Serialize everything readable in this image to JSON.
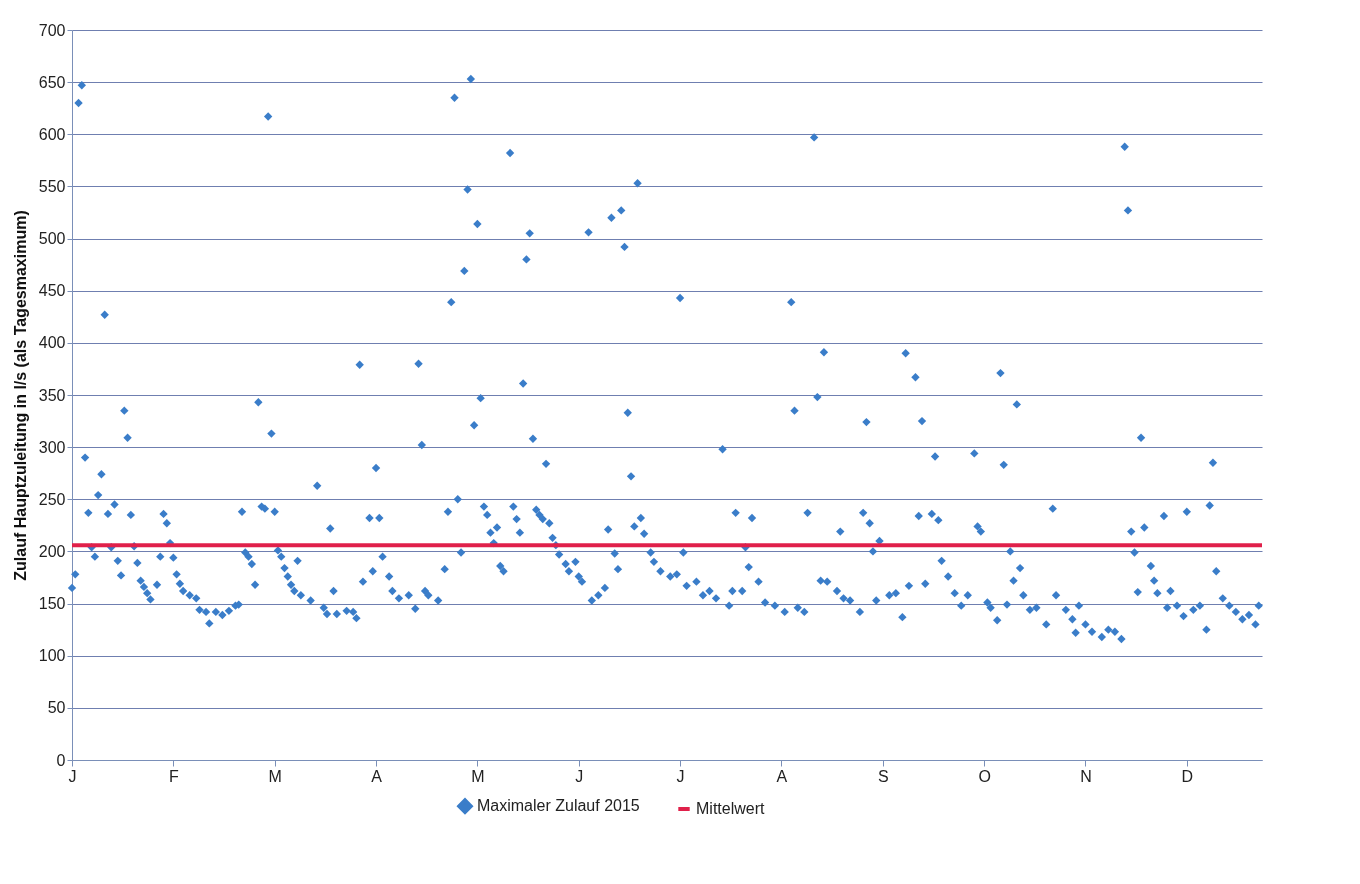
{
  "chart_data": {
    "type": "scatter",
    "ylabel": "Zulauf Hauptzuleitung in l/s (als Tagesmaximum)",
    "categories": [
      "J",
      null,
      null,
      null,
      null,
      null,
      null,
      null,
      null,
      null,
      null,
      null,
      null,
      null,
      null,
      null,
      null,
      null,
      null,
      null,
      null,
      null,
      null,
      null,
      null,
      null,
      null,
      null,
      null,
      null,
      null,
      "F",
      null,
      null,
      null,
      null,
      null,
      null,
      null,
      null,
      null,
      null,
      null,
      null,
      null,
      null,
      null,
      null,
      null,
      null,
      null,
      null,
      null,
      null,
      null,
      null,
      null,
      null,
      null,
      null,
      null,
      null,
      "M",
      null,
      null,
      null,
      null,
      null,
      null,
      null,
      null,
      null,
      null,
      null,
      null,
      null,
      null,
      null,
      null,
      null,
      null,
      null,
      null,
      null,
      null,
      null,
      null,
      null,
      null,
      null,
      null,
      null,
      null,
      "A",
      null,
      null,
      null,
      null,
      null,
      null,
      null,
      null,
      null,
      null,
      null,
      null,
      null,
      null,
      null,
      null,
      null,
      null,
      null,
      null,
      null,
      null,
      null,
      null,
      null,
      null,
      null,
      null,
      null,
      null,
      "M",
      null,
      null,
      null,
      null,
      null,
      null,
      null,
      null,
      null,
      null,
      null,
      null,
      null,
      null,
      null,
      null,
      null,
      null,
      null,
      null,
      null,
      null,
      null,
      null,
      null,
      null,
      null,
      null,
      null,
      null,
      "J",
      null,
      null,
      null,
      null,
      null,
      null,
      null,
      null,
      null,
      null,
      null,
      null,
      null,
      null,
      null,
      null,
      null,
      null,
      null,
      null,
      null,
      null,
      null,
      null,
      null,
      null,
      null,
      null,
      null,
      null,
      "J",
      null,
      null,
      null,
      null,
      null,
      null,
      null,
      null,
      null,
      null,
      null,
      null,
      null,
      null,
      null,
      null,
      null,
      null,
      null,
      null,
      null,
      null,
      null,
      null,
      null,
      null,
      null,
      null,
      null,
      null,
      "A",
      null,
      null,
      null,
      null,
      null,
      null,
      null,
      null,
      null,
      null,
      null,
      null,
      null,
      null,
      null,
      null,
      null,
      null,
      null,
      null,
      null,
      null,
      null,
      null,
      null,
      null,
      null,
      null,
      null,
      null,
      "S",
      null,
      null,
      null,
      null,
      null,
      null,
      null,
      null,
      null,
      null,
      null,
      null,
      null,
      null,
      null,
      null,
      null,
      null,
      null,
      null,
      null,
      null,
      null,
      null,
      null,
      null,
      null,
      null,
      null,
      null,
      "O",
      null,
      null,
      null,
      null,
      null,
      null,
      null,
      null,
      null,
      null,
      null,
      null,
      null,
      null,
      null,
      null,
      null,
      null,
      null,
      null,
      null,
      null,
      null,
      null,
      null,
      null,
      null,
      null,
      null,
      null,
      "N",
      null,
      null,
      null,
      null,
      null,
      null,
      null,
      null,
      null,
      null,
      null,
      null,
      null,
      null,
      null,
      null,
      null,
      null,
      null,
      null,
      null,
      null,
      null,
      null,
      null,
      null,
      null,
      null,
      null,
      null,
      "D",
      null,
      null,
      null,
      null,
      null,
      null,
      null,
      null,
      null,
      null,
      null,
      null,
      null,
      null,
      null,
      null,
      null,
      null,
      null,
      null,
      null,
      null,
      null
    ],
    "ylim": [
      0,
      700
    ],
    "yticks": [
      0,
      50,
      100,
      150,
      200,
      250,
      300,
      350,
      400,
      450,
      500,
      550,
      600,
      650,
      700
    ],
    "grid": "y",
    "legend": "bottom",
    "marker": "diamond",
    "series": [
      {
        "name": "Maximaler Zulauf 2015",
        "color": "#3a7dc9",
        "values": [
          165,
          178,
          630,
          647,
          290,
          237,
          204,
          195,
          254,
          274,
          427,
          236,
          204,
          245,
          191,
          177,
          335,
          309,
          235,
          205,
          189,
          172,
          166,
          160,
          154,
          null,
          168,
          195,
          236,
          227,
          208,
          194,
          178,
          169,
          162,
          null,
          158,
          null,
          155,
          144,
          null,
          142,
          131,
          null,
          142,
          null,
          139,
          null,
          143,
          null,
          148,
          149,
          238,
          199,
          195,
          188,
          168,
          343,
          243,
          241,
          617,
          313,
          238,
          201,
          195,
          184,
          176,
          168,
          162,
          191,
          158,
          null,
          null,
          153,
          null,
          263,
          null,
          146,
          140,
          222,
          162,
          140,
          null,
          null,
          143,
          null,
          142,
          136,
          379,
          171,
          null,
          232,
          181,
          280,
          232,
          195,
          null,
          176,
          162,
          null,
          155,
          null,
          null,
          158,
          null,
          145,
          380,
          302,
          162,
          158,
          null,
          null,
          153,
          null,
          183,
          238,
          439,
          635,
          250,
          199,
          469,
          547,
          653,
          321,
          514,
          347,
          243,
          235,
          218,
          208,
          223,
          186,
          181,
          null,
          582,
          243,
          231,
          218,
          361,
          480,
          505,
          308,
          240,
          235,
          231,
          284,
          227,
          213,
          206,
          197,
          null,
          188,
          181,
          null,
          190,
          176,
          171,
          null,
          506,
          153,
          null,
          158,
          null,
          165,
          221,
          520,
          198,
          183,
          527,
          492,
          333,
          272,
          224,
          553,
          232,
          217,
          null,
          199,
          190,
          null,
          181,
          null,
          null,
          176,
          null,
          178,
          443,
          199,
          167,
          null,
          null,
          171,
          null,
          158,
          null,
          162,
          null,
          155,
          null,
          298,
          null,
          148,
          162,
          237,
          null,
          162,
          204,
          185,
          232,
          null,
          171,
          null,
          151,
          null,
          null,
          148,
          null,
          null,
          142,
          null,
          439,
          335,
          146,
          null,
          142,
          237,
          null,
          597,
          348,
          172,
          391,
          171,
          null,
          null,
          162,
          219,
          155,
          null,
          153,
          null,
          null,
          142,
          237,
          324,
          227,
          200,
          153,
          210,
          null,
          null,
          158,
          null,
          160,
          null,
          137,
          390,
          167,
          null,
          367,
          234,
          325,
          169,
          null,
          236,
          291,
          230,
          191,
          null,
          176,
          null,
          160,
          null,
          148,
          null,
          158,
          null,
          294,
          224,
          219,
          null,
          151,
          146,
          null,
          134,
          371,
          283,
          149,
          200,
          172,
          341,
          184,
          158,
          null,
          144,
          null,
          146,
          null,
          null,
          130,
          null,
          241,
          158,
          null,
          null,
          144,
          null,
          135,
          122,
          148,
          null,
          130,
          null,
          123,
          null,
          null,
          118,
          null,
          125,
          null,
          123,
          null,
          116,
          588,
          527,
          219,
          199,
          161,
          309,
          223,
          null,
          186,
          172,
          160,
          null,
          234,
          146,
          162,
          null,
          148,
          null,
          138,
          238,
          null,
          144,
          null,
          148,
          null,
          125,
          244,
          285,
          181,
          null,
          155,
          null,
          148,
          null,
          142,
          null,
          135,
          null,
          139,
          null,
          130,
          148,
          null
        ]
      }
    ],
    "ref_lines": [
      {
        "axis": "y",
        "value": 206,
        "label": "Mittelwert",
        "color": "#e0204a"
      }
    ]
  }
}
